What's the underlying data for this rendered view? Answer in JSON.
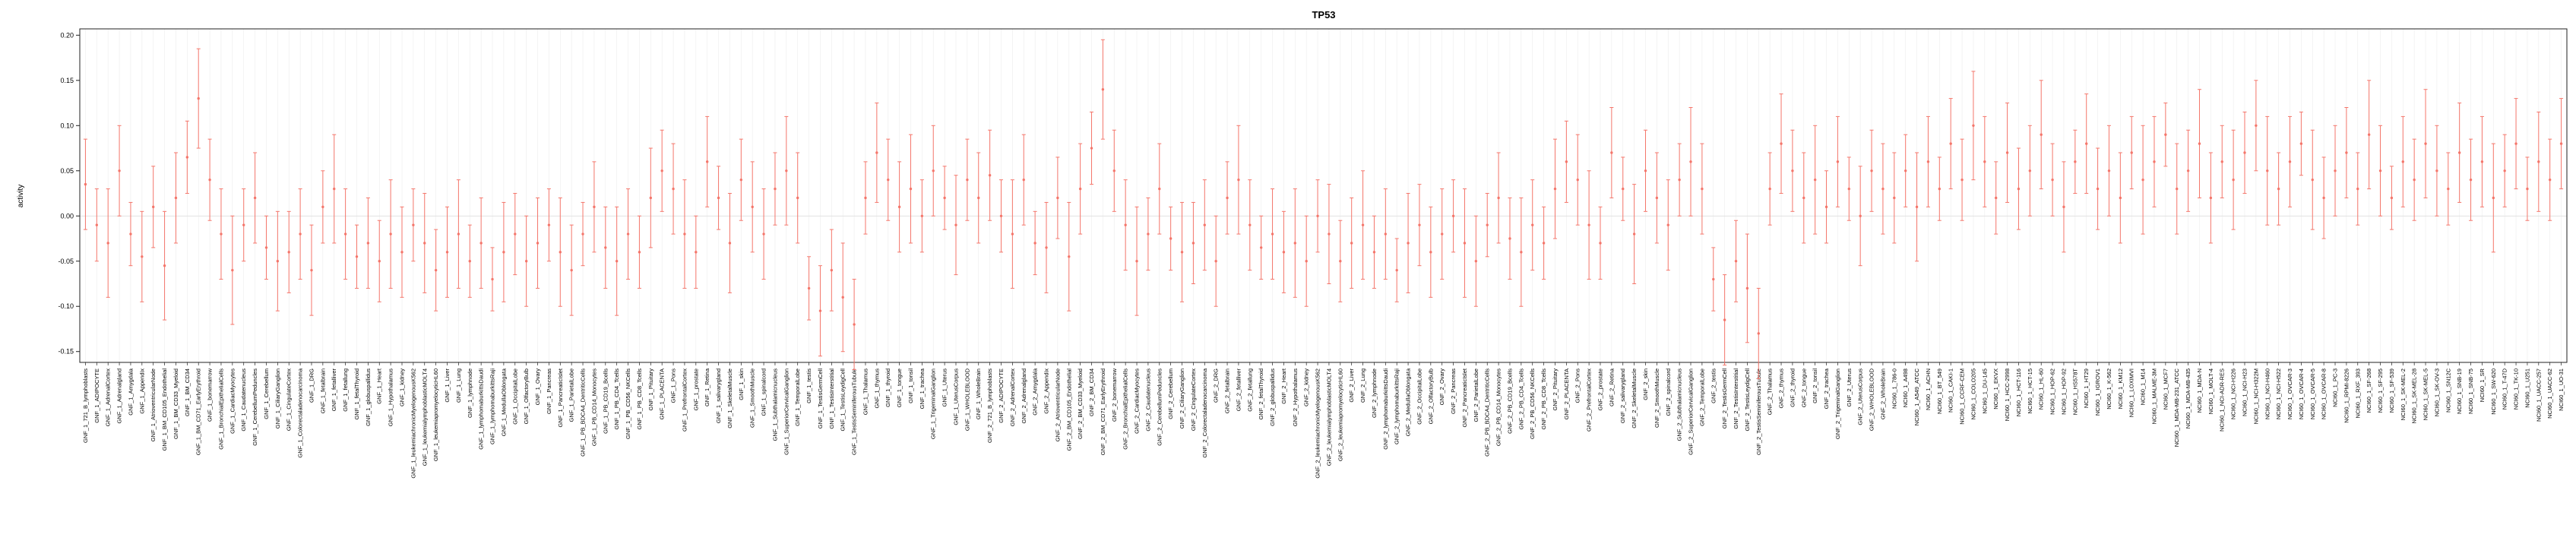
{
  "title": "TP53",
  "chart_data": {
    "type": "errorbar",
    "title": "TP53",
    "ylabel": "activity",
    "xlabel": "",
    "ylim": [
      -0.162,
      0.207
    ],
    "yticks": [
      -0.15,
      -0.1,
      -0.05,
      0.0,
      0.05,
      0.1,
      0.15,
      0.2
    ],
    "grid": "vertical-per-category",
    "legend": "none",
    "point_color": "#f4766b",
    "grid_color": "#ececec",
    "zero_line_color": "#dedede",
    "axis_color": "#222222",
    "gnf_tissues": [
      "721_B_lymphoblasts",
      "ADIPOCYTE",
      "AdrenalCortex",
      "Adrenalgland",
      "Amygdala",
      "Appendix",
      "AtrioventricularNode",
      "BM_CD105_Endothelial",
      "BM_CD33_Myeloid",
      "BM_CD34",
      "BM_CD71_EarlyErythroid",
      "bonemarrow",
      "BronchialEpithelialCells",
      "CardiacMyocytes",
      "Caudatenucleus",
      "CerebellumPeduncles",
      "Cerebellum",
      "CiliaryGanglion",
      "CingulateCortex",
      "Colorectaladenocarcinoma",
      "DRG",
      "fetalbrain",
      "fetalliver",
      "fetallung",
      "fetalThyroid",
      "globuspallidus",
      "Heart",
      "Hypothalamus",
      "kidney",
      "leukemiachronicMyelogenousK562",
      "leukemialymphoblasticMOLT4",
      "leukemiapromyelocyticHL60",
      "Liver",
      "Lung",
      "lymphnode",
      "lymphomaburkittsDaudi",
      "lymphomaburkittsRaji",
      "MedullaOblongata",
      "OccipitalLobe",
      "OlfactoryBulb",
      "Ovary",
      "Pancreas",
      "PancreaticIslet",
      "ParietalLobe",
      "PB_BDCA4_DentriticCells",
      "PB_CD14_Monocytes",
      "PB_CD19_Bcells",
      "PB_CD4_Tcells",
      "PB_CD56_NKCells",
      "PB_CD8_Tcells",
      "Pituitary",
      "PLACENTA",
      "Pons",
      "PrefrontalCortex",
      "prostate",
      "Retina",
      "salivarygland",
      "SkeletalMuscle",
      "skin",
      "SmoothMuscle",
      "spinalcord",
      "Subthalamicnucleus",
      "SuperiorCervicalGanglion",
      "TemporalLobe",
      "testis",
      "TestisGermCell",
      "TestisInterstitial",
      "TestisLeydigCell",
      "TestisSeminiferousTubule",
      "Thalamus",
      "thymus",
      "thyroid",
      "tongue",
      "tonsil",
      "trachea",
      "TrigeminalGanglion",
      "Uterus",
      "UterusCorpus",
      "WHOLEBLOOD",
      "WholeBrain"
    ],
    "nci60_lines": [
      "786-0",
      "A498",
      "A549_ATCC",
      "ACHN",
      "BT_549",
      "CAKI-1",
      "CCRF-CEM",
      "COLO205",
      "DU-145",
      "EKVX",
      "HCC-2998",
      "HCT-116",
      "HCT-15",
      "HL-60",
      "HOP-62",
      "HOP-92",
      "HS578T",
      "HT29",
      "IGROV1",
      "K-562",
      "KM12",
      "LOXIMVI",
      "M14",
      "MALME-3M",
      "MCF7",
      "MDA-MB-231_ATCC",
      "MDA-MB-435",
      "MDA-N",
      "MOLT-4",
      "NCI-ADR-RES",
      "NCI-H226",
      "NCI-H23",
      "NCI-H322M",
      "NCI-H460",
      "NCI-H522",
      "OVCAR-3",
      "OVCAR-4",
      "OVCAR-5",
      "OVCAR-8",
      "PC-3",
      "RPMI-8226",
      "RXF_393",
      "SF-268",
      "SF-295",
      "SF-539",
      "SK-MEL-2",
      "SK-MEL-28",
      "SK-MEL-5",
      "SK-OV-3",
      "SN12C",
      "SNB-19",
      "SNB-75",
      "SR",
      "SW-620",
      "T-47D",
      "TK-10",
      "U251",
      "UACC-257",
      "UACC-62",
      "UO-31"
    ],
    "groups": [
      {
        "prefix": "GNF_1_",
        "labels_ref": "gnf_tissues"
      },
      {
        "prefix": "GNF_2_",
        "labels_ref": "gnf_tissues"
      },
      {
        "prefix": "NCI60_1_",
        "labels_ref": "nci60_lines"
      }
    ],
    "series": [
      {
        "name": "activity",
        "means": [
          0.035,
          -0.01,
          -0.03,
          0.05,
          -0.02,
          -0.045,
          0.01,
          -0.055,
          0.02,
          0.065,
          0.13,
          0.04,
          -0.02,
          -0.06,
          -0.01,
          0.02,
          -0.035,
          -0.05,
          -0.04,
          -0.02,
          -0.06,
          0.01,
          0.03,
          -0.02,
          -0.045,
          -0.03,
          -0.05,
          -0.02,
          -0.04,
          -0.01,
          -0.03,
          -0.06,
          -0.04,
          -0.02,
          -0.05,
          -0.03,
          -0.07,
          -0.04,
          -0.02,
          -0.05,
          -0.03,
          -0.01,
          -0.04,
          -0.06,
          -0.02,
          0.01,
          -0.035,
          -0.05,
          -0.02,
          -0.04,
          0.02,
          0.05,
          0.03,
          -0.02,
          -0.04,
          0.06,
          0.02,
          -0.03,
          0.04,
          0.01,
          -0.02,
          0.03,
          0.05,
          0.02,
          -0.08,
          -0.105,
          -0.06,
          -0.09,
          -0.12,
          0.02,
          0.07,
          0.04,
          0.01,
          0.03,
          0.0,
          0.05,
          0.02,
          -0.01,
          0.04,
          0.02,
          0.045,
          0.0,
          -0.02,
          0.04,
          -0.03,
          -0.035,
          0.02,
          -0.045,
          0.03,
          0.075,
          0.14,
          0.05,
          -0.01,
          -0.05,
          -0.02,
          0.03,
          -0.025,
          -0.04,
          -0.03,
          -0.01,
          -0.05,
          0.02,
          0.04,
          -0.01,
          -0.035,
          -0.02,
          -0.04,
          -0.03,
          -0.05,
          0.0,
          -0.02,
          -0.05,
          -0.03,
          -0.01,
          -0.04,
          -0.02,
          -0.06,
          -0.03,
          -0.01,
          -0.04,
          -0.02,
          0.0,
          -0.03,
          -0.05,
          -0.01,
          0.02,
          -0.025,
          -0.04,
          -0.01,
          -0.03,
          0.03,
          0.06,
          0.04,
          -0.01,
          -0.03,
          0.07,
          0.03,
          -0.02,
          0.05,
          0.02,
          -0.01,
          0.04,
          0.06,
          0.03,
          -0.07,
          -0.115,
          -0.05,
          -0.08,
          -0.13,
          0.03,
          0.08,
          0.05,
          0.02,
          0.04,
          0.01,
          0.06,
          0.03,
          0.0,
          0.05,
          0.03,
          0.02,
          0.05,
          0.01,
          0.06,
          0.03,
          0.08,
          0.04,
          0.1,
          0.06,
          0.02,
          0.07,
          0.03,
          0.05,
          0.09,
          0.04,
          0.01,
          0.06,
          0.08,
          0.03,
          0.05,
          0.02,
          0.07,
          0.04,
          0.06,
          0.09,
          0.03,
          0.05,
          0.08,
          0.02,
          0.06,
          0.04,
          0.07,
          0.1,
          0.05,
          0.03,
          0.06,
          0.08,
          0.04,
          0.02,
          0.05,
          0.07,
          0.03,
          0.09,
          0.05,
          0.02,
          0.06,
          0.04,
          0.08,
          0.05,
          0.03,
          0.07,
          0.04,
          0.06,
          0.02,
          0.05,
          0.08,
          0.03,
          0.06,
          0.04,
          0.08
        ],
        "errors": [
          0.05,
          0.04,
          0.06,
          0.05,
          0.035,
          0.05,
          0.045,
          0.06,
          0.05,
          0.04,
          0.055,
          0.045,
          0.05,
          0.06,
          0.04,
          0.05,
          0.035,
          0.055,
          0.045,
          0.05,
          0.05,
          0.04,
          0.06,
          0.05,
          0.035,
          0.05,
          0.045,
          0.06,
          0.05,
          0.04,
          0.055,
          0.045,
          0.05,
          0.06,
          0.04,
          0.05,
          0.035,
          0.055,
          0.045,
          0.05,
          0.05,
          0.04,
          0.06,
          0.05,
          0.035,
          0.05,
          0.045,
          0.06,
          0.05,
          0.04,
          0.055,
          0.045,
          0.05,
          0.06,
          0.04,
          0.05,
          0.035,
          0.055,
          0.045,
          0.05,
          0.05,
          0.04,
          0.06,
          0.05,
          0.035,
          0.05,
          0.045,
          0.06,
          0.05,
          0.04,
          0.055,
          0.045,
          0.05,
          0.06,
          0.04,
          0.05,
          0.035,
          0.055,
          0.045,
          0.05,
          0.05,
          0.04,
          0.06,
          0.05,
          0.035,
          0.05,
          0.045,
          0.06,
          0.05,
          0.04,
          0.055,
          0.045,
          0.05,
          0.06,
          0.04,
          0.05,
          0.035,
          0.055,
          0.045,
          0.05,
          0.05,
          0.04,
          0.06,
          0.05,
          0.035,
          0.05,
          0.045,
          0.06,
          0.05,
          0.04,
          0.055,
          0.045,
          0.05,
          0.06,
          0.04,
          0.05,
          0.035,
          0.055,
          0.045,
          0.05,
          0.05,
          0.04,
          0.06,
          0.05,
          0.035,
          0.05,
          0.045,
          0.06,
          0.05,
          0.04,
          0.055,
          0.045,
          0.05,
          0.06,
          0.04,
          0.05,
          0.035,
          0.055,
          0.045,
          0.05,
          0.05,
          0.04,
          0.06,
          0.05,
          0.035,
          0.05,
          0.045,
          0.06,
          0.05,
          0.04,
          0.055,
          0.045,
          0.05,
          0.06,
          0.04,
          0.05,
          0.035,
          0.055,
          0.045,
          0.05,
          0.05,
          0.04,
          0.06,
          0.05,
          0.035,
          0.05,
          0.045,
          0.06,
          0.05,
          0.04,
          0.055,
          0.045,
          0.05,
          0.06,
          0.04,
          0.05,
          0.035,
          0.055,
          0.045,
          0.05,
          0.05,
          0.04,
          0.06,
          0.05,
          0.035,
          0.05,
          0.045,
          0.06,
          0.05,
          0.04,
          0.055,
          0.045,
          0.05,
          0.06,
          0.04,
          0.05,
          0.035,
          0.055,
          0.045,
          0.05,
          0.05,
          0.04,
          0.06,
          0.05,
          0.035,
          0.05,
          0.045,
          0.06,
          0.05,
          0.04,
          0.055,
          0.045,
          0.05,
          0.06,
          0.04,
          0.05,
          0.035,
          0.055,
          0.045,
          0.05
        ]
      }
    ]
  }
}
